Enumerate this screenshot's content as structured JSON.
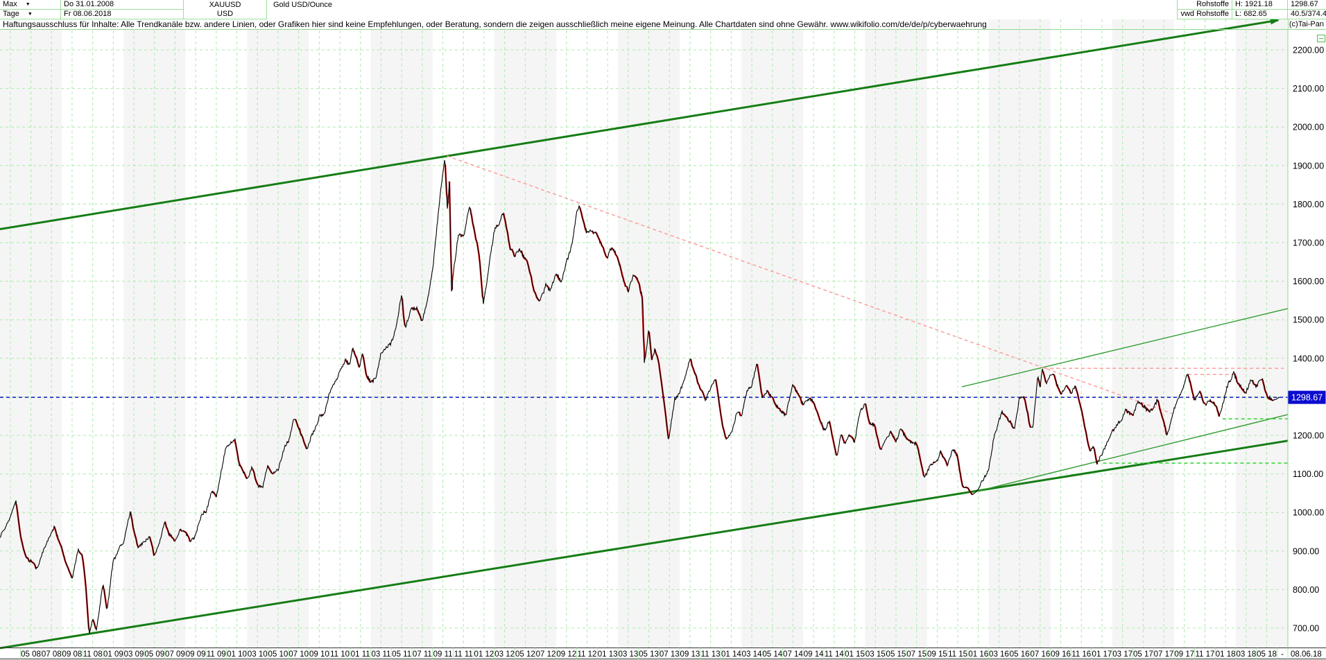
{
  "header": {
    "range_selector": "Max",
    "period_selector": "Tage",
    "date_from": "Do 31.01.2008",
    "date_to": "Fr 08.06.2018",
    "symbol": "XAUUSD",
    "currency": "USD",
    "instrument": "Gold USD/Ounce",
    "category": "Rohstoffe",
    "provider": "vwd Rohstoffe",
    "high_label": "H: 1921.18",
    "low_label": "L: 682.65",
    "last_price": "1298.67",
    "stat": "40.5/374.4",
    "copyright": "(c)Tai-Pan"
  },
  "disclaimer": "Haftungsausschluss für Inhalte: Alle Trendkanäle bzw. andere Linien, oder Grafiken hier sind keine Empfehlungen, oder Beratung, sondern die zeigen ausschließlich meine eigene Meinung. Alle Chartdaten sind ohne Gewähr.  www.wikifolio.com/de/de/p/cyberwaehrungen",
  "axis": {
    "y_ticks": [
      "2200.00",
      "2100.00",
      "2000.00",
      "1900.00",
      "1800.00",
      "1700.00",
      "1600.00",
      "1500.00",
      "1400.00",
      "1300.00",
      "1200.00",
      "1100.00",
      "1000.00",
      "900.00",
      "800.00",
      "700.00"
    ],
    "price_marker": "1298.67",
    "x_ticks": [
      "05 08",
      "07 08",
      "09 08",
      "11 08",
      "01 09",
      "03 09",
      "05 09",
      "07 09",
      "09 09",
      "11 09",
      "01 10",
      "03 10",
      "05 10",
      "07 10",
      "09 10",
      "11 10",
      "01 11",
      "03 11",
      "05 11",
      "07 11",
      "09 11",
      "11 11",
      "01 12",
      "03 12",
      "05 12",
      "07 12",
      "09 12",
      "11 12",
      "01 13",
      "03 13",
      "05 13",
      "07 13",
      "09 13",
      "11 13",
      "01 14",
      "03 14",
      "05 14",
      "07 14",
      "09 14",
      "11 14",
      "01 15",
      "03 15",
      "05 15",
      "07 15",
      "09 15",
      "11 15",
      "01 16",
      "03 16",
      "05 16",
      "07 16",
      "09 16",
      "11 16",
      "01 17",
      "03 17",
      "05 17",
      "07 17",
      "09 17",
      "11 17",
      "01 18",
      "03 18",
      "05 18"
    ],
    "x_dash": "-",
    "x_last": "08.06.18"
  },
  "colors": {
    "grid": "#aceaac",
    "frame": "#8fd88f",
    "band": "#f5f5f5",
    "channel_green": "#157d15",
    "thin_green": "#2f9b2f",
    "pink": "#ff9c9c",
    "bright_green": "#2fd42f",
    "blue": "#1818cc",
    "badge_bg": "#0b0bd0",
    "price": "#000000",
    "price_down": "#dd1111",
    "strip_border": "#333333"
  },
  "chart_data": {
    "type": "line",
    "title": "Gold USD/Ounce",
    "symbol": "XAUUSD",
    "x_unit": "months since 2008-02-01",
    "x_range": [
      0,
      124.25
    ],
    "y_ticks": [
      700,
      800,
      900,
      1000,
      1100,
      1200,
      1300,
      1400,
      1500,
      1600,
      1700,
      1800,
      1900,
      2000,
      2100,
      2200
    ],
    "high": 1921.18,
    "low": 682.65,
    "last": 1298.67,
    "grid": "dashed light-green, bimonthly vertical / 100-USD horizontal",
    "series_anchors": [
      [
        0,
        923
      ],
      [
        0.9,
        975
      ],
      [
        1.55,
        1031
      ],
      [
        2,
        934
      ],
      [
        2.5,
        885
      ],
      [
        3,
        871
      ],
      [
        3.5,
        850
      ],
      [
        4,
        886
      ],
      [
        4.7,
        927
      ],
      [
        5.3,
        960
      ],
      [
        6,
        913
      ],
      [
        6.5,
        860
      ],
      [
        7,
        833
      ],
      [
        7.6,
        905
      ],
      [
        8,
        885
      ],
      [
        8.3,
        820
      ],
      [
        8.66,
        682.65
      ],
      [
        9,
        723
      ],
      [
        9.35,
        698
      ],
      [
        9.7,
        760
      ],
      [
        10,
        815
      ],
      [
        10.4,
        750
      ],
      [
        11,
        878
      ],
      [
        11.7,
        920
      ],
      [
        12,
        925
      ],
      [
        12.65,
        998
      ],
      [
        13,
        950
      ],
      [
        13.4,
        900
      ],
      [
        14,
        920
      ],
      [
        14.5,
        935
      ],
      [
        15,
        888
      ],
      [
        15.5,
        925
      ],
      [
        16,
        978
      ],
      [
        16.4,
        940
      ],
      [
        17,
        930
      ],
      [
        17.5,
        955
      ],
      [
        18,
        953
      ],
      [
        18.5,
        935
      ],
      [
        19,
        953
      ],
      [
        19.5,
        995
      ],
      [
        20,
        1008
      ],
      [
        20.5,
        1060
      ],
      [
        21,
        1045
      ],
      [
        21.9,
        1172
      ],
      [
        22.8,
        1195
      ],
      [
        23.2,
        1128
      ],
      [
        24,
        1095
      ],
      [
        24.5,
        1120
      ],
      [
        25,
        1080
      ],
      [
        25.5,
        1065
      ],
      [
        26,
        1118
      ],
      [
        26.5,
        1100
      ],
      [
        27,
        1113
      ],
      [
        27.5,
        1160
      ],
      [
        28,
        1180
      ],
      [
        28.5,
        1240
      ],
      [
        29,
        1213
      ],
      [
        29.8,
        1157
      ],
      [
        30.5,
        1215
      ],
      [
        31,
        1247
      ],
      [
        31.5,
        1255
      ],
      [
        32,
        1307
      ],
      [
        32.5,
        1340
      ],
      [
        33,
        1357
      ],
      [
        33.5,
        1395
      ],
      [
        34,
        1385
      ],
      [
        34.2,
        1423
      ],
      [
        34.9,
        1380
      ],
      [
        35.2,
        1420
      ],
      [
        35.6,
        1355
      ],
      [
        36,
        1333
      ],
      [
        36.5,
        1345
      ],
      [
        37,
        1410
      ],
      [
        37.5,
        1430
      ],
      [
        38,
        1438
      ],
      [
        38.5,
        1475
      ],
      [
        39,
        1565
      ],
      [
        39.3,
        1480
      ],
      [
        40,
        1537
      ],
      [
        40.5,
        1525
      ],
      [
        41,
        1500
      ],
      [
        41.5,
        1550
      ],
      [
        42,
        1628
      ],
      [
        42.4,
        1740
      ],
      [
        42.75,
        1830
      ],
      [
        43.2,
        1921.18
      ],
      [
        43.45,
        1780
      ],
      [
        43.65,
        1865
      ],
      [
        43.85,
        1555
      ],
      [
        44,
        1622
      ],
      [
        44.5,
        1730
      ],
      [
        45,
        1722
      ],
      [
        45.6,
        1802
      ],
      [
        46,
        1745
      ],
      [
        46.5,
        1680
      ],
      [
        46.93,
        1545
      ],
      [
        47.1,
        1566
      ],
      [
        47.5,
        1650
      ],
      [
        48,
        1737
      ],
      [
        48.8,
        1788
      ],
      [
        49,
        1770
      ],
      [
        49.5,
        1700
      ],
      [
        50,
        1668
      ],
      [
        50.5,
        1680
      ],
      [
        51,
        1662
      ],
      [
        51.5,
        1610
      ],
      [
        52,
        1562
      ],
      [
        52.3,
        1540
      ],
      [
        53,
        1598
      ],
      [
        53.5,
        1580
      ],
      [
        54,
        1614
      ],
      [
        54.5,
        1600
      ],
      [
        55,
        1648
      ],
      [
        55.5,
        1690
      ],
      [
        56,
        1772
      ],
      [
        56.3,
        1790
      ],
      [
        57,
        1720
      ],
      [
        57.5,
        1730
      ],
      [
        58,
        1714
      ],
      [
        58.5,
        1690
      ],
      [
        59,
        1674
      ],
      [
        59.4,
        1694
      ],
      [
        60,
        1662
      ],
      [
        60.5,
        1610
      ],
      [
        61,
        1580
      ],
      [
        61.5,
        1615
      ],
      [
        62,
        1597
      ],
      [
        62.4,
        1560
      ],
      [
        62.55,
        1385
      ],
      [
        63,
        1472
      ],
      [
        63.3,
        1390
      ],
      [
        63.6,
        1420
      ],
      [
        64,
        1387
      ],
      [
        64.9,
        1185
      ],
      [
        65.5,
        1290
      ],
      [
        66,
        1312
      ],
      [
        66.5,
        1348
      ],
      [
        67,
        1395
      ],
      [
        67.5,
        1360
      ],
      [
        68,
        1328
      ],
      [
        68.5,
        1285
      ],
      [
        69,
        1323
      ],
      [
        69.5,
        1355
      ],
      [
        70,
        1253
      ],
      [
        70.5,
        1188
      ],
      [
        71,
        1205
      ],
      [
        71.5,
        1252
      ],
      [
        72,
        1244
      ],
      [
        72.5,
        1300
      ],
      [
        73,
        1326
      ],
      [
        73.5,
        1380
      ],
      [
        74,
        1292
      ],
      [
        74.5,
        1300
      ],
      [
        75,
        1288
      ],
      [
        75.5,
        1268
      ],
      [
        76,
        1250
      ],
      [
        76.3,
        1242
      ],
      [
        77,
        1327
      ],
      [
        77.5,
        1310
      ],
      [
        78,
        1282
      ],
      [
        78.5,
        1295
      ],
      [
        79,
        1287
      ],
      [
        79.5,
        1240
      ],
      [
        80,
        1208
      ],
      [
        80.5,
        1230
      ],
      [
        81,
        1173
      ],
      [
        81.25,
        1140
      ],
      [
        81.7,
        1200
      ],
      [
        82,
        1175
      ],
      [
        82.5,
        1195
      ],
      [
        83,
        1184
      ],
      [
        83.5,
        1255
      ],
      [
        84,
        1283
      ],
      [
        84.5,
        1230
      ],
      [
        85,
        1213
      ],
      [
        85.5,
        1160
      ],
      [
        86,
        1183
      ],
      [
        86.5,
        1205
      ],
      [
        87,
        1184
      ],
      [
        87.5,
        1225
      ],
      [
        88,
        1190
      ],
      [
        88.5,
        1180
      ],
      [
        89,
        1172
      ],
      [
        89.75,
        1082
      ],
      [
        90.3,
        1115
      ],
      [
        91,
        1134
      ],
      [
        91.3,
        1155
      ],
      [
        92,
        1115
      ],
      [
        92.5,
        1170
      ],
      [
        93,
        1142
      ],
      [
        93.5,
        1070
      ],
      [
        94,
        1064
      ],
      [
        94.4,
        1046
      ],
      [
        95,
        1061
      ],
      [
        95.5,
        1090
      ],
      [
        96,
        1118
      ],
      [
        96.5,
        1200
      ],
      [
        97,
        1238
      ],
      [
        97.3,
        1260
      ],
      [
        98,
        1232
      ],
      [
        98.5,
        1215
      ],
      [
        99,
        1292
      ],
      [
        99.5,
        1290
      ],
      [
        100,
        1215
      ],
      [
        100.3,
        1212
      ],
      [
        100.78,
        1355
      ],
      [
        101,
        1322
      ],
      [
        101.2,
        1374
      ],
      [
        101.6,
        1330
      ],
      [
        102,
        1351
      ],
      [
        102.5,
        1340
      ],
      [
        103,
        1309
      ],
      [
        103.5,
        1330
      ],
      [
        104,
        1316
      ],
      [
        104.4,
        1340
      ],
      [
        105,
        1272
      ],
      [
        105.9,
        1165
      ],
      [
        106.2,
        1174
      ],
      [
        106.5,
        1125
      ],
      [
        107,
        1152
      ],
      [
        107.5,
        1180
      ],
      [
        108,
        1211
      ],
      [
        108.5,
        1230
      ],
      [
        109,
        1248
      ],
      [
        109.3,
        1260
      ],
      [
        110,
        1249
      ],
      [
        110.5,
        1280
      ],
      [
        111,
        1268
      ],
      [
        111.5,
        1255
      ],
      [
        112,
        1269
      ],
      [
        112.4,
        1295
      ],
      [
        113,
        1242
      ],
      [
        113.3,
        1210
      ],
      [
        114,
        1269
      ],
      [
        114.6,
        1300
      ],
      [
        115,
        1321
      ],
      [
        115.3,
        1349
      ],
      [
        116,
        1280
      ],
      [
        116.5,
        1302
      ],
      [
        117,
        1271
      ],
      [
        117.5,
        1285
      ],
      [
        118,
        1275
      ],
      [
        118.4,
        1240
      ],
      [
        119,
        1303
      ],
      [
        119.8,
        1360
      ],
      [
        120.2,
        1345
      ],
      [
        120.6,
        1330
      ],
      [
        121,
        1318
      ],
      [
        121.5,
        1352
      ],
      [
        122,
        1325
      ],
      [
        122.5,
        1350
      ],
      [
        123,
        1315
      ],
      [
        123.5,
        1289
      ],
      [
        124,
        1298
      ],
      [
        124.25,
        1298.67
      ]
    ],
    "pin_points_m": [
      1.55,
      8.66,
      43.2,
      94.4,
      101.2,
      124.25
    ],
    "trendlines": [
      {
        "name": "upper-channel",
        "style": "solid",
        "color": "channel_green",
        "width": 3,
        "arrow": true,
        "pts": [
          [
            0,
            1735
          ],
          [
            124.1,
            2277
          ]
        ]
      },
      {
        "name": "lower-channel",
        "style": "solid",
        "color": "channel_green",
        "width": 3,
        "arrow": false,
        "pts": [
          [
            0,
            648
          ],
          [
            125.05,
            1186
          ]
        ]
      },
      {
        "name": "support-line-a",
        "style": "solid",
        "color": "thin_green",
        "width": 1.4,
        "arrow": false,
        "pts": [
          [
            93.4,
            1326
          ],
          [
            125.05,
            1529
          ]
        ]
      },
      {
        "name": "support-line-b",
        "style": "solid",
        "color": "thin_green",
        "width": 1.4,
        "arrow": false,
        "pts": [
          [
            94.4,
            1052
          ],
          [
            125.05,
            1254
          ]
        ]
      },
      {
        "name": "resistance-from-top",
        "style": "dashed",
        "color": "pink",
        "width": 1.5,
        "arrow": false,
        "pts": [
          [
            43.4,
            1925
          ],
          [
            113.8,
            1257
          ]
        ]
      },
      {
        "name": "resistance-1374",
        "style": "dashed",
        "color": "pink",
        "width": 1.5,
        "arrow": false,
        "pts": [
          [
            101.35,
            1374
          ],
          [
            124.65,
            1374
          ]
        ]
      },
      {
        "name": "resistance-1358",
        "style": "dashed",
        "color": "pink",
        "width": 1.5,
        "arrow": false,
        "pts": [
          [
            115.35,
            1358
          ],
          [
            119.85,
            1358
          ]
        ]
      },
      {
        "name": "support-1243",
        "style": "dashed",
        "color": "bright_green",
        "width": 1.5,
        "arrow": false,
        "pts": [
          [
            118.7,
            1243
          ],
          [
            125.05,
            1243
          ]
        ]
      },
      {
        "name": "support-1128",
        "style": "dashed",
        "color": "bright_green",
        "width": 1.5,
        "arrow": false,
        "pts": [
          [
            107.1,
            1128
          ],
          [
            125.05,
            1128
          ]
        ]
      },
      {
        "name": "last-price-line",
        "style": "dashed",
        "color": "blue",
        "width": 1.5,
        "arrow": false,
        "pts": [
          [
            0,
            1298.67
          ],
          [
            125.05,
            1298.67
          ]
        ]
      }
    ]
  }
}
